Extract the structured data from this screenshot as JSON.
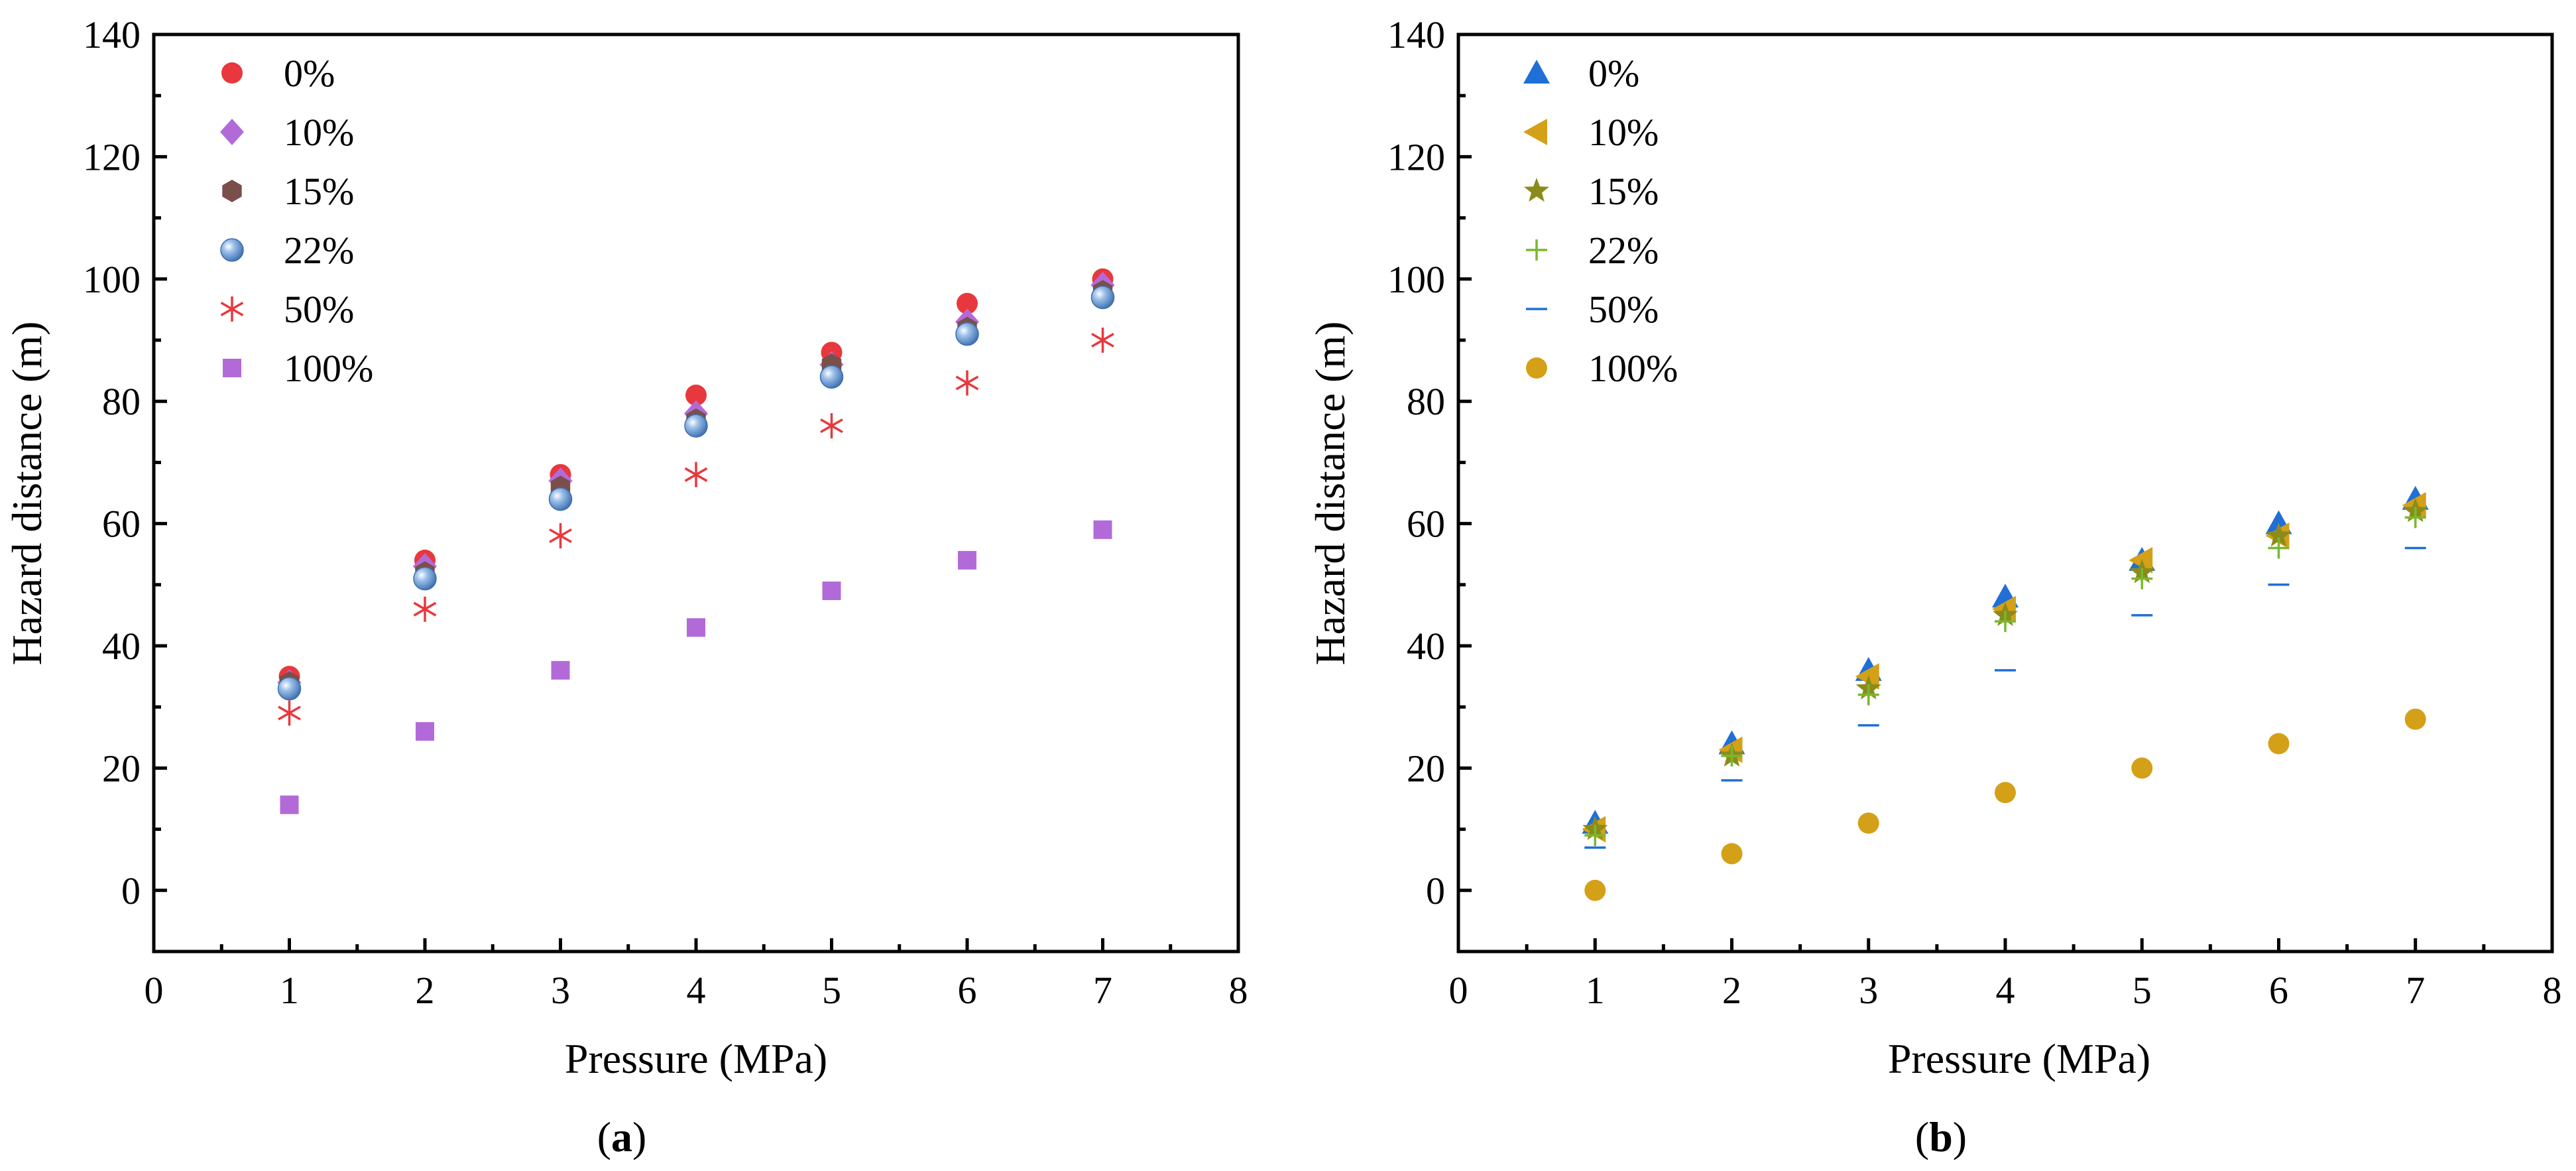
{
  "chart_data": [
    {
      "type": "scatter",
      "panel_label": "a",
      "xlabel": "Pressure (MPa)",
      "ylabel": "Hazard distance (m)",
      "xlim": [
        0,
        8
      ],
      "ylim": [
        -10,
        140
      ],
      "xticks": [
        0,
        1,
        2,
        3,
        4,
        5,
        6,
        7,
        8
      ],
      "yticks": [
        0,
        20,
        40,
        60,
        80,
        100,
        120,
        140
      ],
      "legend_position": "top-left",
      "series": [
        {
          "name": "0%",
          "marker": "circle",
          "color": "#e8383d",
          "x": [
            1,
            2,
            3,
            4,
            5,
            6,
            7
          ],
          "y": [
            35,
            54,
            68,
            81,
            88,
            96,
            100
          ]
        },
        {
          "name": "10%",
          "marker": "diamond",
          "color": "#b36ad9",
          "x": [
            1,
            2,
            3,
            4,
            5,
            6,
            7
          ],
          "y": [
            34,
            53,
            67,
            78,
            86,
            93,
            99
          ]
        },
        {
          "name": "15%",
          "marker": "hexagon",
          "color": "#7a4f4a",
          "x": [
            1,
            2,
            3,
            4,
            5,
            6,
            7
          ],
          "y": [
            34,
            52,
            66,
            77,
            86,
            92,
            98
          ]
        },
        {
          "name": "22%",
          "marker": "sphere",
          "color": "#5b8fd0",
          "x": [
            1,
            2,
            3,
            4,
            5,
            6,
            7
          ],
          "y": [
            33,
            51,
            64,
            76,
            84,
            91,
            97
          ]
        },
        {
          "name": "50%",
          "marker": "asterisk",
          "color": "#e8383d",
          "x": [
            1,
            2,
            3,
            4,
            5,
            6,
            7
          ],
          "y": [
            29,
            46,
            58,
            68,
            76,
            83,
            90
          ]
        },
        {
          "name": "100%",
          "marker": "square",
          "color": "#b36ad9",
          "x": [
            1,
            2,
            3,
            4,
            5,
            6,
            7
          ],
          "y": [
            14,
            26,
            36,
            43,
            49,
            54,
            59
          ]
        }
      ]
    },
    {
      "type": "scatter",
      "panel_label": "b",
      "xlabel": "Pressure (MPa)",
      "ylabel": "Hazard distance (m)",
      "xlim": [
        0,
        8
      ],
      "ylim": [
        -10,
        140
      ],
      "xticks": [
        0,
        1,
        2,
        3,
        4,
        5,
        6,
        7,
        8
      ],
      "yticks": [
        0,
        20,
        40,
        60,
        80,
        100,
        120,
        140
      ],
      "legend_position": "top-left",
      "series": [
        {
          "name": "0%",
          "marker": "triangle-up",
          "color": "#1f6fd6",
          "x": [
            1,
            2,
            3,
            4,
            5,
            6,
            7
          ],
          "y": [
            11,
            24,
            36,
            48,
            54,
            60,
            64
          ]
        },
        {
          "name": "10%",
          "marker": "triangle-left",
          "color": "#d4a017",
          "x": [
            1,
            2,
            3,
            4,
            5,
            6,
            7
          ],
          "y": [
            10,
            23,
            35,
            46,
            54,
            58,
            63
          ]
        },
        {
          "name": "15%",
          "marker": "star",
          "color": "#8b8b1a",
          "x": [
            1,
            2,
            3,
            4,
            5,
            6,
            7
          ],
          "y": [
            10,
            22,
            33,
            45,
            52,
            58,
            62
          ]
        },
        {
          "name": "22%",
          "marker": "plus",
          "color": "#7ab82e",
          "x": [
            1,
            2,
            3,
            4,
            5,
            6,
            7
          ],
          "y": [
            9,
            22,
            32,
            44,
            51,
            56,
            61
          ]
        },
        {
          "name": "50%",
          "marker": "dash",
          "color": "#1f6fd6",
          "x": [
            1,
            2,
            3,
            4,
            5,
            6,
            7
          ],
          "y": [
            7,
            18,
            27,
            36,
            45,
            50,
            56
          ]
        },
        {
          "name": "100%",
          "marker": "circle",
          "color": "#d4a017",
          "x": [
            1,
            2,
            3,
            4,
            5,
            6,
            7
          ],
          "y": [
            0,
            6,
            11,
            16,
            20,
            24,
            28
          ]
        }
      ]
    }
  ]
}
